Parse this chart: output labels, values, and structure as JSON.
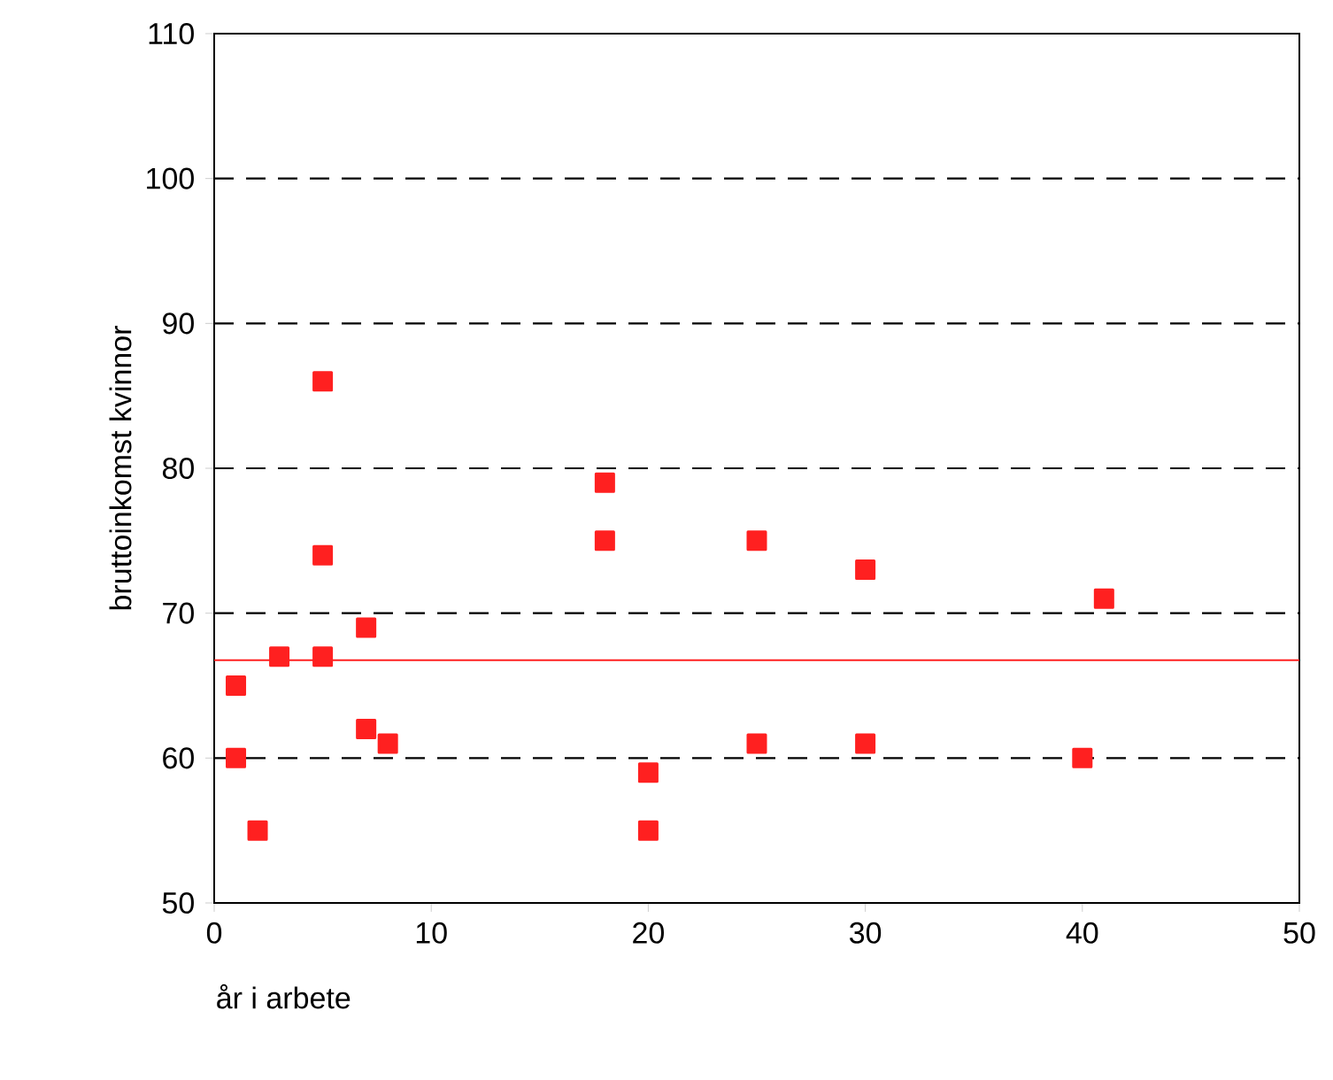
{
  "chart_data": {
    "type": "scatter",
    "xlabel": "år i arbete",
    "ylabel": "bruttoinkomst kvinnor",
    "x": [
      1,
      1,
      2,
      3,
      5,
      5,
      5,
      7,
      7,
      8,
      18,
      18,
      20,
      20,
      25,
      25,
      30,
      30,
      40,
      41
    ],
    "series": [
      {
        "color": "#ff2020",
        "values": [
          65,
          60,
          55,
          67,
          86,
          74,
          67,
          69,
          62,
          61,
          79,
          75,
          59,
          55,
          75,
          61,
          73,
          61,
          60,
          71
        ]
      }
    ],
    "xlim": [
      0,
      50
    ],
    "ylim": [
      50,
      110
    ],
    "xticks": [
      0,
      10,
      20,
      30,
      40,
      50
    ],
    "yticks": [
      50,
      60,
      70,
      80,
      90,
      100,
      110
    ],
    "ref_lines": [
      {
        "axis": "y",
        "value": 66.75,
        "color": "#ff2020",
        "line_style": "solid"
      }
    ],
    "grid": "y",
    "marker": "square"
  }
}
